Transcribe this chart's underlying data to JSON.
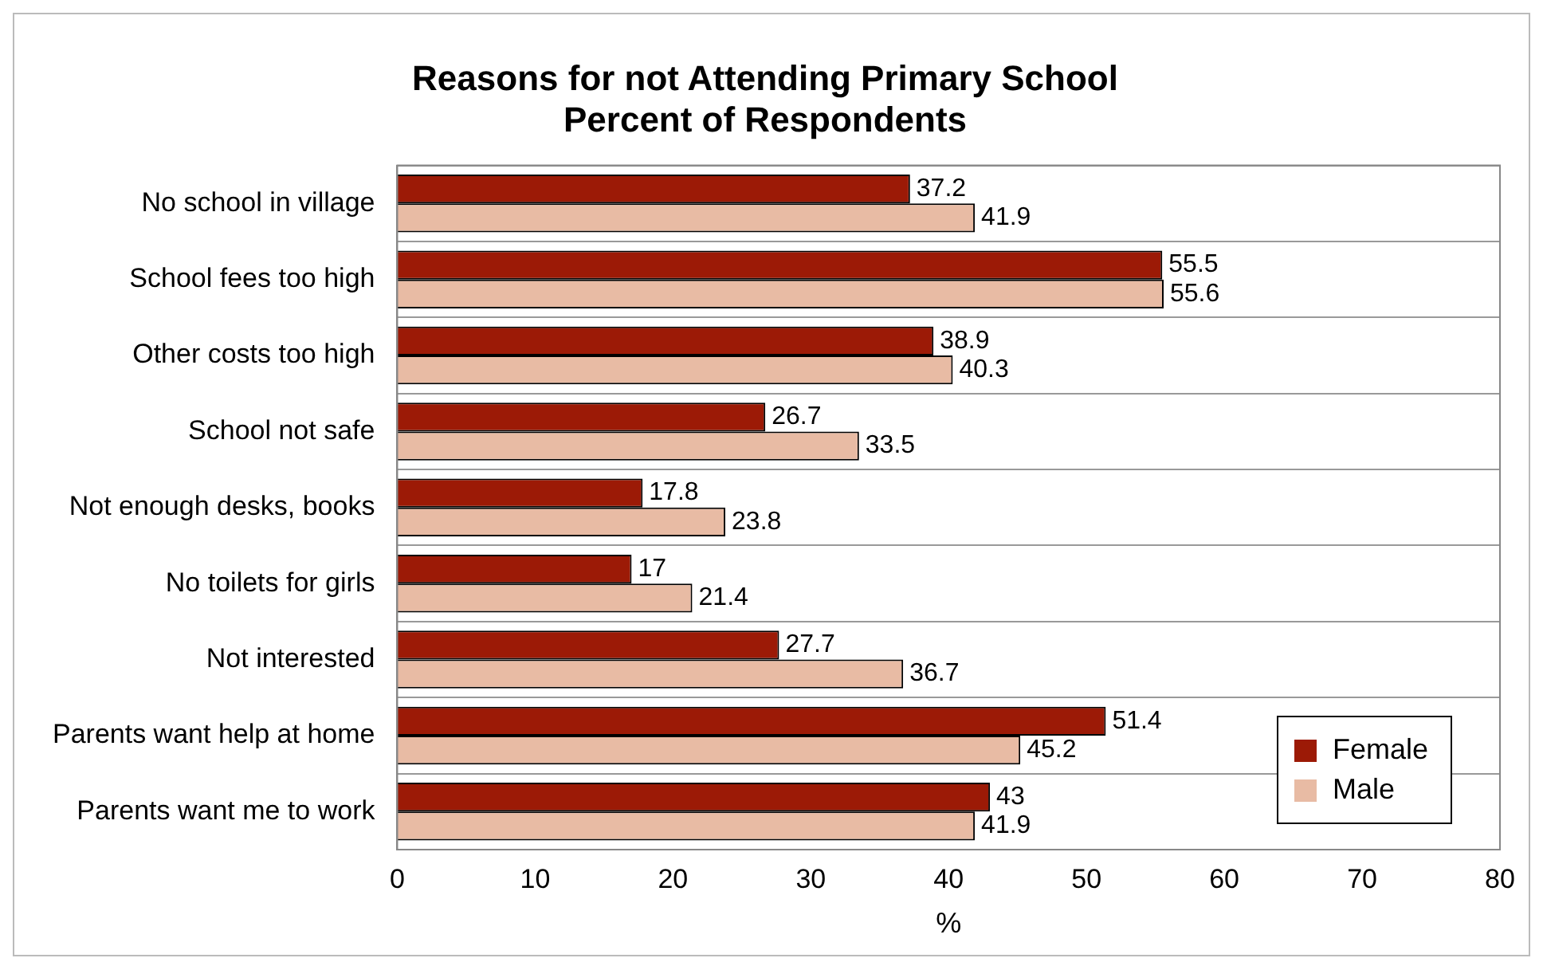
{
  "chart_data": {
    "type": "bar",
    "orientation": "horizontal",
    "title": "Reasons for not Attending Primary School\nPercent of Respondents",
    "xlabel": "%",
    "categories": [
      "No school in village",
      "School fees too high",
      "Other costs too high",
      "School not safe",
      "Not enough desks, books",
      "No toilets for girls",
      "Not interested",
      "Parents want help at home",
      "Parents want me to work"
    ],
    "series": [
      {
        "name": "Female",
        "color": "#9c1a06",
        "values": [
          37.2,
          55.5,
          38.9,
          26.7,
          17.8,
          17,
          27.7,
          51.4,
          43
        ]
      },
      {
        "name": "Male",
        "color": "#e8bba4",
        "values": [
          41.9,
          55.6,
          40.3,
          33.5,
          23.8,
          21.4,
          36.7,
          45.2,
          41.9
        ]
      }
    ],
    "xlim": [
      0,
      80
    ],
    "xticks": [
      0,
      10,
      20,
      30,
      40,
      50,
      60,
      70,
      80
    ],
    "grid": "y",
    "legend": "bottom right",
    "data_labels": true
  }
}
